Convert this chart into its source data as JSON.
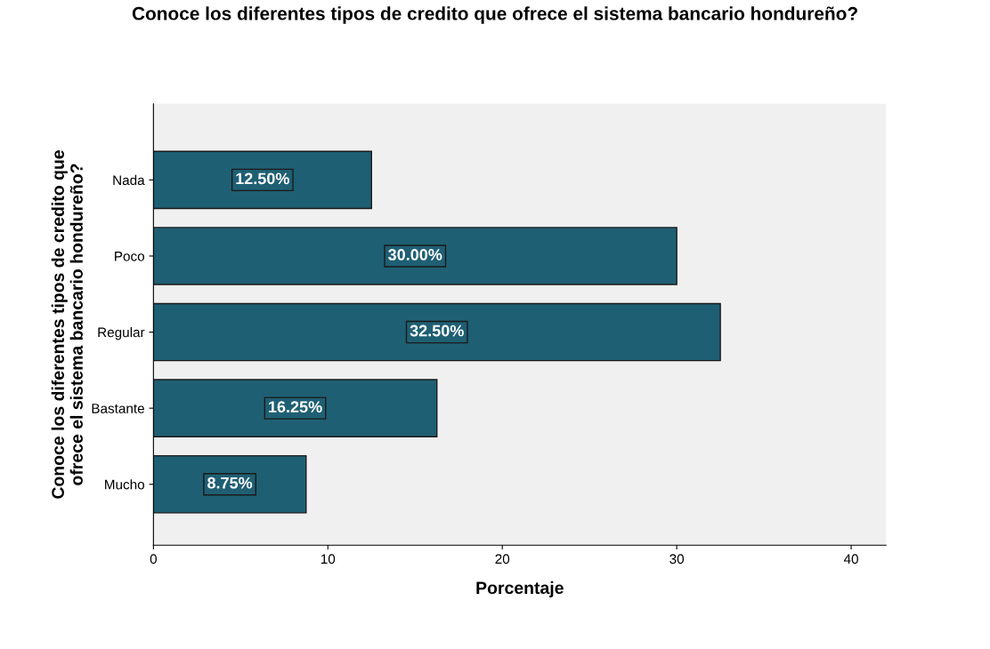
{
  "chart_data": {
    "type": "bar",
    "orientation": "horizontal",
    "title": "Conoce los diferentes tipos de credito que ofrece el sistema bancario hondureño?",
    "xlabel": "Porcentaje",
    "ylabel": "Conoce los diferentes tipos de credito que\nofrece el sistema bancario hondureño?",
    "categories": [
      "Nada",
      "Poco",
      "Regular",
      "Bastante",
      "Mucho"
    ],
    "values": [
      12.5,
      30.0,
      32.5,
      16.25,
      8.75
    ],
    "value_labels": [
      "12.50%",
      "30.00%",
      "32.50%",
      "16.25%",
      "8.75%"
    ],
    "color": "#1f5f73",
    "xlim": [
      0,
      42
    ],
    "xticks": [
      0,
      10,
      20,
      30,
      40
    ],
    "grid": false
  }
}
